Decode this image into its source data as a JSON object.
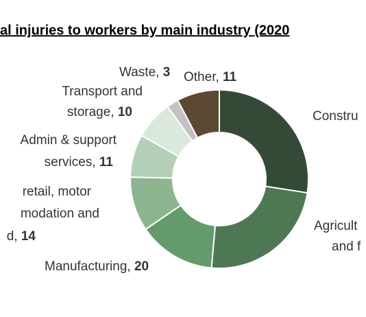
{
  "chart_data": {
    "type": "donut",
    "title": "al injuries to workers by main industry (2020",
    "categories": [
      [
        "Constru"
      ],
      [
        "Agricult",
        "and f"
      ],
      [
        "Manufacturing, "
      ],
      [
        "retail, motor",
        "modation and",
        "d, "
      ],
      [
        "Admin & support",
        "services, "
      ],
      [
        "Transport and",
        "storage, "
      ],
      [
        "Waste, "
      ],
      [
        "Other, "
      ]
    ],
    "values": [
      39,
      34,
      20,
      14,
      11,
      10,
      3,
      11
    ],
    "value_labels": [
      null,
      null,
      "20",
      "14",
      "11",
      "10",
      "3",
      "11"
    ],
    "colors": [
      "#344a36",
      "#4e7853",
      "#649a6c",
      "#8db590",
      "#b3cfb5",
      "#dbe8dc",
      "#c2c2c2",
      "#5b4a31"
    ]
  }
}
